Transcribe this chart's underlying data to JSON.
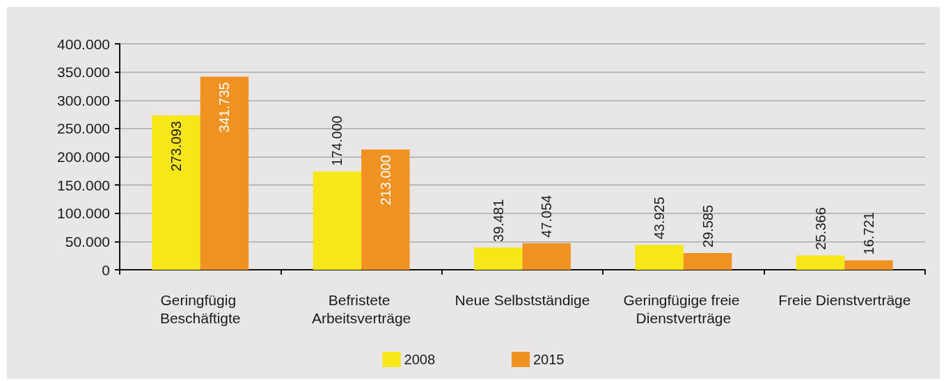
{
  "chart_data": {
    "type": "bar",
    "categories": [
      "Geringfügig Beschäftigte",
      "Befristete Arbeitsverträge",
      "Neue Selbstständige",
      "Geringfügige freie Dienstverträge",
      "Freie Dienstverträge"
    ],
    "series": [
      {
        "name": "2008",
        "color": "#f7e618",
        "values": [
          273093,
          174000,
          39481,
          43925,
          25366
        ],
        "value_labels": [
          "273.093",
          "174.000",
          "39.481",
          "43.925",
          "25.366"
        ]
      },
      {
        "name": "2015",
        "color": "#f09222",
        "values": [
          341735,
          213000,
          47054,
          29585,
          16721
        ],
        "value_labels": [
          "341.735",
          "213.000",
          "47.054",
          "29.585",
          "16.721"
        ]
      }
    ],
    "ylim": [
      0,
      400000
    ],
    "yticks": [
      0,
      {
        "value": 50000,
        "label": "50.000"
      },
      {
        "value": 100000,
        "label": "100.000"
      },
      {
        "value": 150000,
        "label": "150.000"
      },
      {
        "value": 200000,
        "label": "200.000"
      },
      {
        "value": 250000,
        "label": "250.000"
      },
      {
        "value": 300000,
        "label": "300.000"
      },
      {
        "value": 350000,
        "label": "350.000"
      },
      {
        "value": 400000,
        "label": "400.000"
      }
    ],
    "grid": "y",
    "legend": "bottom"
  }
}
